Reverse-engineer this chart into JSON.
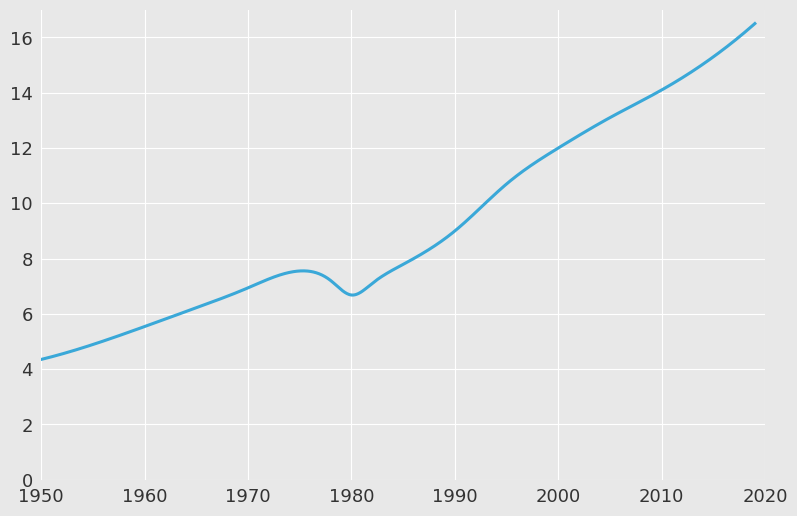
{
  "x": [
    1950,
    1955,
    1960,
    1965,
    1970,
    1975,
    1978,
    1980,
    1982,
    1985,
    1990,
    1995,
    2000,
    2005,
    2010,
    2015,
    2019
  ],
  "y": [
    4.35,
    4.89,
    5.54,
    6.22,
    6.94,
    7.55,
    7.2,
    6.68,
    7.1,
    7.79,
    9.0,
    10.7,
    12.0,
    13.1,
    14.1,
    15.3,
    16.5
  ],
  "line_color": "#3aa8d8",
  "line_width": 2.2,
  "background_color": "#e8e8e8",
  "grid_color": "#ffffff",
  "xlim": [
    1950,
    2020
  ],
  "ylim": [
    0,
    17
  ],
  "xticks": [
    1950,
    1960,
    1970,
    1980,
    1990,
    2000,
    2010,
    2020
  ],
  "yticks": [
    0,
    2,
    4,
    6,
    8,
    10,
    12,
    14,
    16
  ],
  "tick_fontsize": 13,
  "grid_linewidth": 0.8
}
